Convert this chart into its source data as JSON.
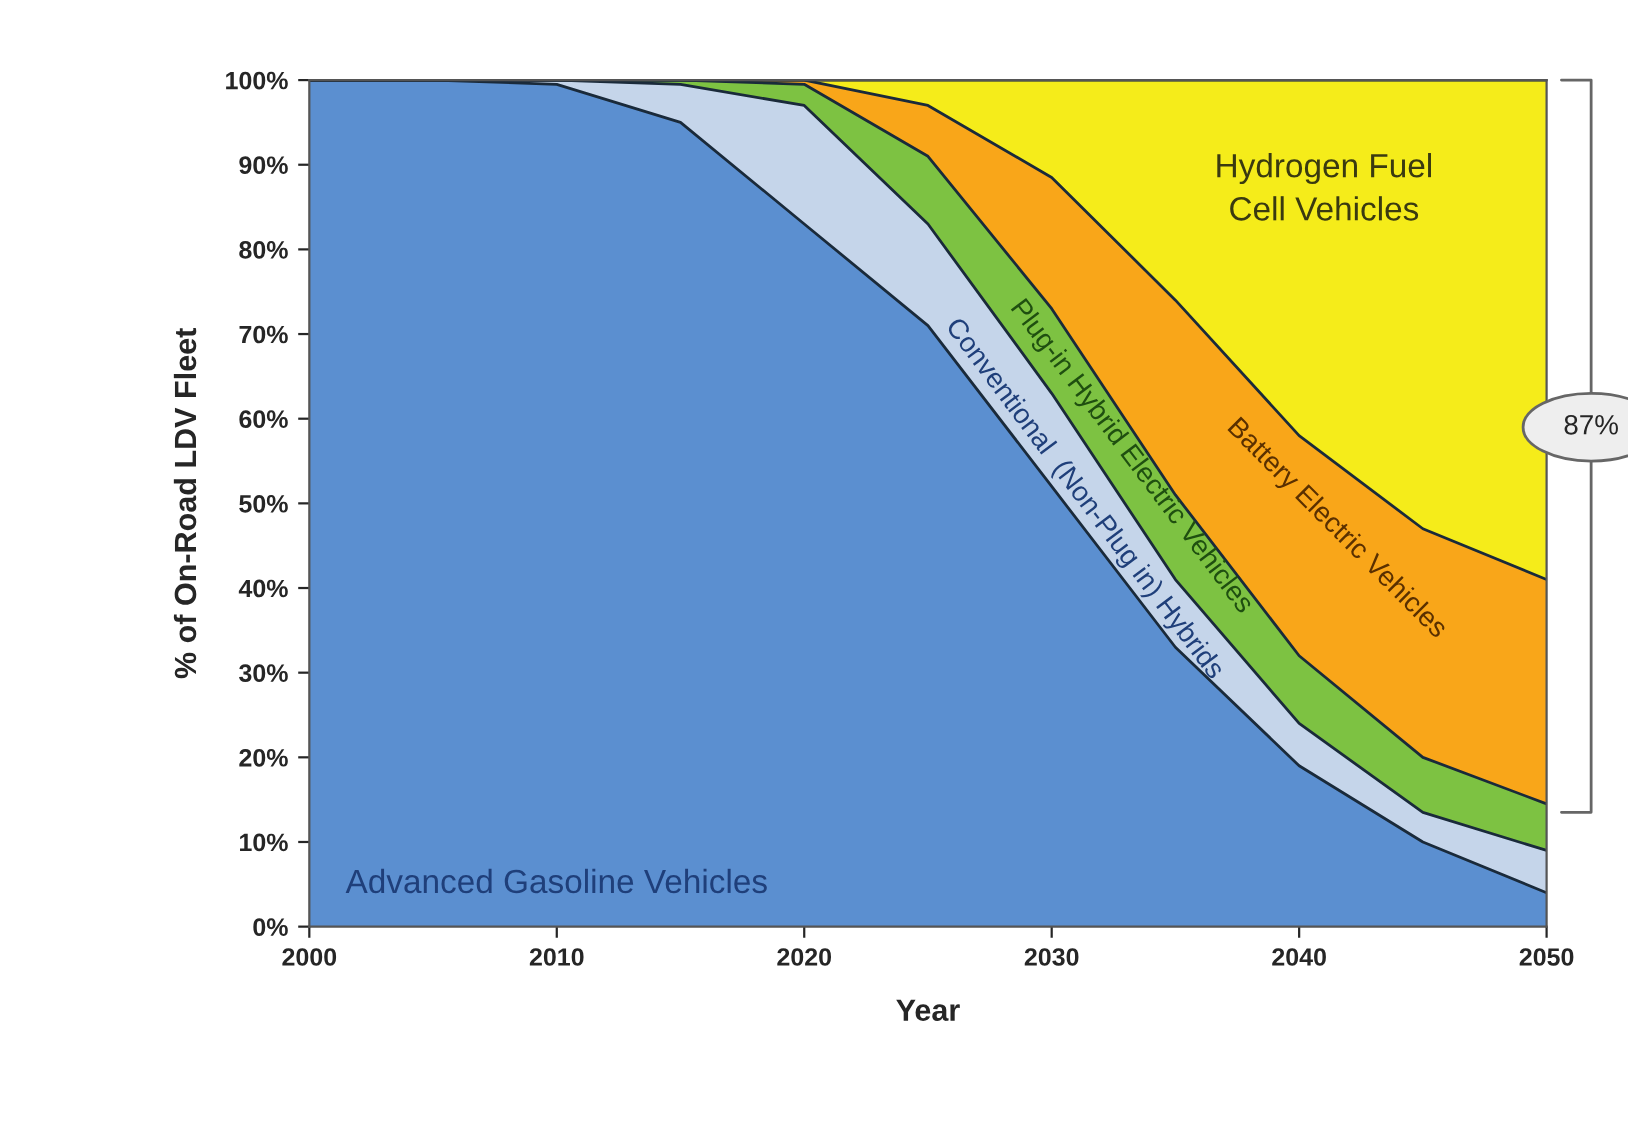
{
  "chart_data": {
    "type": "area",
    "stacked": true,
    "xlabel": "Year",
    "ylabel": "% of On-Road LDV Fleet",
    "x": [
      2000,
      2005,
      2010,
      2015,
      2020,
      2025,
      2030,
      2035,
      2040,
      2045,
      2050
    ],
    "xlim": [
      2000,
      2050
    ],
    "xticks": [
      2000,
      2010,
      2020,
      2030,
      2040,
      2050
    ],
    "ylim": [
      0,
      100
    ],
    "yticks": [
      {
        "value": 0,
        "label": "0%"
      },
      {
        "value": 10,
        "label": "10%"
      },
      {
        "value": 20,
        "label": "20%"
      },
      {
        "value": 30,
        "label": "30%"
      },
      {
        "value": 40,
        "label": "40%"
      },
      {
        "value": 50,
        "label": "50%"
      },
      {
        "value": 60,
        "label": "60%"
      },
      {
        "value": 70,
        "label": "70%"
      },
      {
        "value": 80,
        "label": "80%"
      },
      {
        "value": 90,
        "label": "90%"
      },
      {
        "value": 100,
        "label": "100%"
      }
    ],
    "legend": false,
    "series": [
      {
        "name": "Advanced Gasoline Vehicles",
        "color": "#5b8fd0",
        "values": [
          100,
          100,
          99.5,
          95,
          83,
          71,
          52,
          33,
          19,
          10,
          4
        ]
      },
      {
        "name": "Conventional  (Non-Plug in) Hybrids",
        "color": "#c5d5ea",
        "values": [
          0,
          0,
          0.5,
          4.5,
          14,
          12,
          11,
          8,
          5,
          3.5,
          5
        ]
      },
      {
        "name": "Plug-in Hybrid Electric Vehicles",
        "color": "#7dc242",
        "values": [
          0,
          0,
          0,
          0.5,
          2.5,
          8,
          10,
          10,
          8,
          6.5,
          5.5
        ]
      },
      {
        "name": "Battery Electric Vehicles",
        "color": "#f9a619",
        "values": [
          0,
          0,
          0,
          0,
          0.5,
          6,
          15.5,
          23,
          26,
          27,
          26.5
        ]
      },
      {
        "name": "Hydrogen Fuel\nCell Vehicles",
        "color": "#f5ec1a",
        "values": [
          0,
          0,
          0,
          0,
          0,
          3,
          11.5,
          26,
          42,
          53,
          59
        ]
      }
    ],
    "annotations": [
      "87%"
    ]
  }
}
